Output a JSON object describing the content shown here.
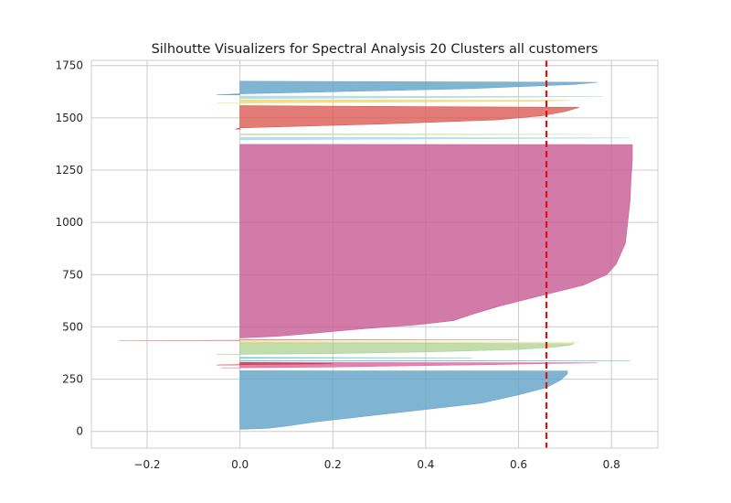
{
  "chart_data": {
    "type": "area",
    "title": "Silhoutte Visualizers for Spectral Analysis 20 Clusters all customers",
    "xlabel": "",
    "ylabel": "",
    "xlim": [
      -0.32,
      0.9
    ],
    "ylim": [
      -80,
      1775
    ],
    "x_ticks": [
      -0.2,
      0.0,
      0.2,
      0.4,
      0.6,
      0.8
    ],
    "x_tick_labels": [
      "−0.2",
      "0.0",
      "0.2",
      "0.4",
      "0.6",
      "0.8"
    ],
    "y_ticks": [
      0,
      250,
      500,
      750,
      1000,
      1250,
      1500,
      1750
    ],
    "y_tick_labels": [
      "0",
      "250",
      "500",
      "750",
      "1000",
      "1250",
      "1500",
      "1750"
    ],
    "grid": true,
    "average_silhouette_score": 0.66,
    "clusters": [
      {
        "color": "#5fa2c8",
        "fill_opacity": 0.8,
        "profile": [
          [
            10,
            -0.0
          ],
          [
            15,
            0.06
          ],
          [
            25,
            0.1
          ],
          [
            45,
            0.16
          ],
          [
            70,
            0.26
          ],
          [
            100,
            0.38
          ],
          [
            135,
            0.52
          ],
          [
            175,
            0.6
          ],
          [
            210,
            0.66
          ],
          [
            245,
            0.69
          ],
          [
            275,
            0.705
          ],
          [
            289,
            0.705
          ],
          [
            290,
            0.0
          ]
        ]
      },
      {
        "color": "#e0609a",
        "fill_opacity": 0.8,
        "profile": [
          [
            304,
            -0.04
          ],
          [
            308,
            0.2
          ],
          [
            312,
            0.3
          ],
          [
            318,
            0.5
          ],
          [
            324,
            0.64
          ],
          [
            328,
            0.77
          ],
          [
            330,
            0.0
          ]
        ]
      },
      {
        "color": "#c23b3b",
        "fill_opacity": 0.6,
        "profile": [
          [
            318,
            -0.05
          ],
          [
            324,
            0.2
          ],
          [
            330,
            0.0
          ]
        ]
      },
      {
        "color": "#6bbcd0",
        "fill_opacity": 0.5,
        "profile": [
          [
            336,
            0.0
          ],
          [
            338,
            0.84
          ],
          [
            340,
            0.0
          ]
        ]
      },
      {
        "color": "#6bbcd0",
        "fill_opacity": 0.45,
        "profile": [
          [
            350,
            0.0
          ],
          [
            352,
            0.5
          ],
          [
            354,
            0.0
          ]
        ]
      },
      {
        "color": "#a6cf8a",
        "fill_opacity": 0.7,
        "profile": [
          [
            368,
            -0.05
          ],
          [
            372,
            0.2
          ],
          [
            380,
            0.4
          ],
          [
            392,
            0.6
          ],
          [
            404,
            0.68
          ],
          [
            412,
            0.71
          ],
          [
            420,
            0.72
          ],
          [
            424,
            0.0
          ]
        ]
      },
      {
        "color": "#f0d86a",
        "fill_opacity": 0.8,
        "profile": [
          [
            425,
            0.0
          ],
          [
            427,
            0.73
          ],
          [
            429,
            0.0
          ]
        ]
      },
      {
        "color": "#e08a8a",
        "fill_opacity": 0.6,
        "profile": [
          [
            434,
            -0.26
          ],
          [
            436,
            0.0
          ],
          [
            438,
            0.6
          ],
          [
            440,
            0.0
          ]
        ]
      },
      {
        "color": "#c75a94",
        "fill_opacity": 0.8,
        "profile": [
          [
            447,
            0.0
          ],
          [
            455,
            0.08
          ],
          [
            470,
            0.16
          ],
          [
            490,
            0.26
          ],
          [
            510,
            0.38
          ],
          [
            530,
            0.46
          ],
          [
            560,
            0.5
          ],
          [
            600,
            0.56
          ],
          [
            650,
            0.65
          ],
          [
            700,
            0.74
          ],
          [
            750,
            0.79
          ],
          [
            800,
            0.81
          ],
          [
            900,
            0.83
          ],
          [
            1000,
            0.835
          ],
          [
            1100,
            0.84
          ],
          [
            1200,
            0.842
          ],
          [
            1300,
            0.845
          ],
          [
            1372,
            0.845
          ],
          [
            1373,
            0.0
          ]
        ]
      },
      {
        "color": "#a6d8e6",
        "fill_opacity": 0.8,
        "profile": [
          [
            1395,
            0.0
          ],
          [
            1400,
            0.5
          ],
          [
            1404,
            0.84
          ],
          [
            1407,
            0.0
          ]
        ]
      },
      {
        "color": "#c8e0b0",
        "fill_opacity": 0.7,
        "profile": [
          [
            1418,
            0.0
          ],
          [
            1421,
            0.76
          ],
          [
            1424,
            0.0
          ]
        ]
      },
      {
        "color": "#d9504a",
        "fill_opacity": 0.75,
        "profile": [
          [
            1446,
            -0.01
          ],
          [
            1452,
            0.0
          ],
          [
            1470,
            0.3
          ],
          [
            1490,
            0.55
          ],
          [
            1510,
            0.65
          ],
          [
            1530,
            0.7
          ],
          [
            1550,
            0.73
          ],
          [
            1558,
            0.0
          ]
        ]
      },
      {
        "color": "#f0d86a",
        "fill_opacity": 0.8,
        "profile": [
          [
            1570,
            -0.05
          ],
          [
            1575,
            0.3
          ],
          [
            1580,
            0.65
          ],
          [
            1584,
            0.71
          ],
          [
            1586,
            0.0
          ]
        ]
      },
      {
        "color": "#a6d8e6",
        "fill_opacity": 0.8,
        "profile": [
          [
            1592,
            0.0
          ],
          [
            1598,
            0.5
          ],
          [
            1602,
            0.78
          ],
          [
            1604,
            0.0
          ]
        ]
      },
      {
        "color": "#5fa2c8",
        "fill_opacity": 0.8,
        "profile": [
          [
            1610,
            -0.05
          ],
          [
            1615,
            0.0
          ],
          [
            1625,
            0.2
          ],
          [
            1640,
            0.5
          ],
          [
            1660,
            0.72
          ],
          [
            1670,
            0.77
          ],
          [
            1675,
            0.0
          ]
        ]
      }
    ]
  }
}
